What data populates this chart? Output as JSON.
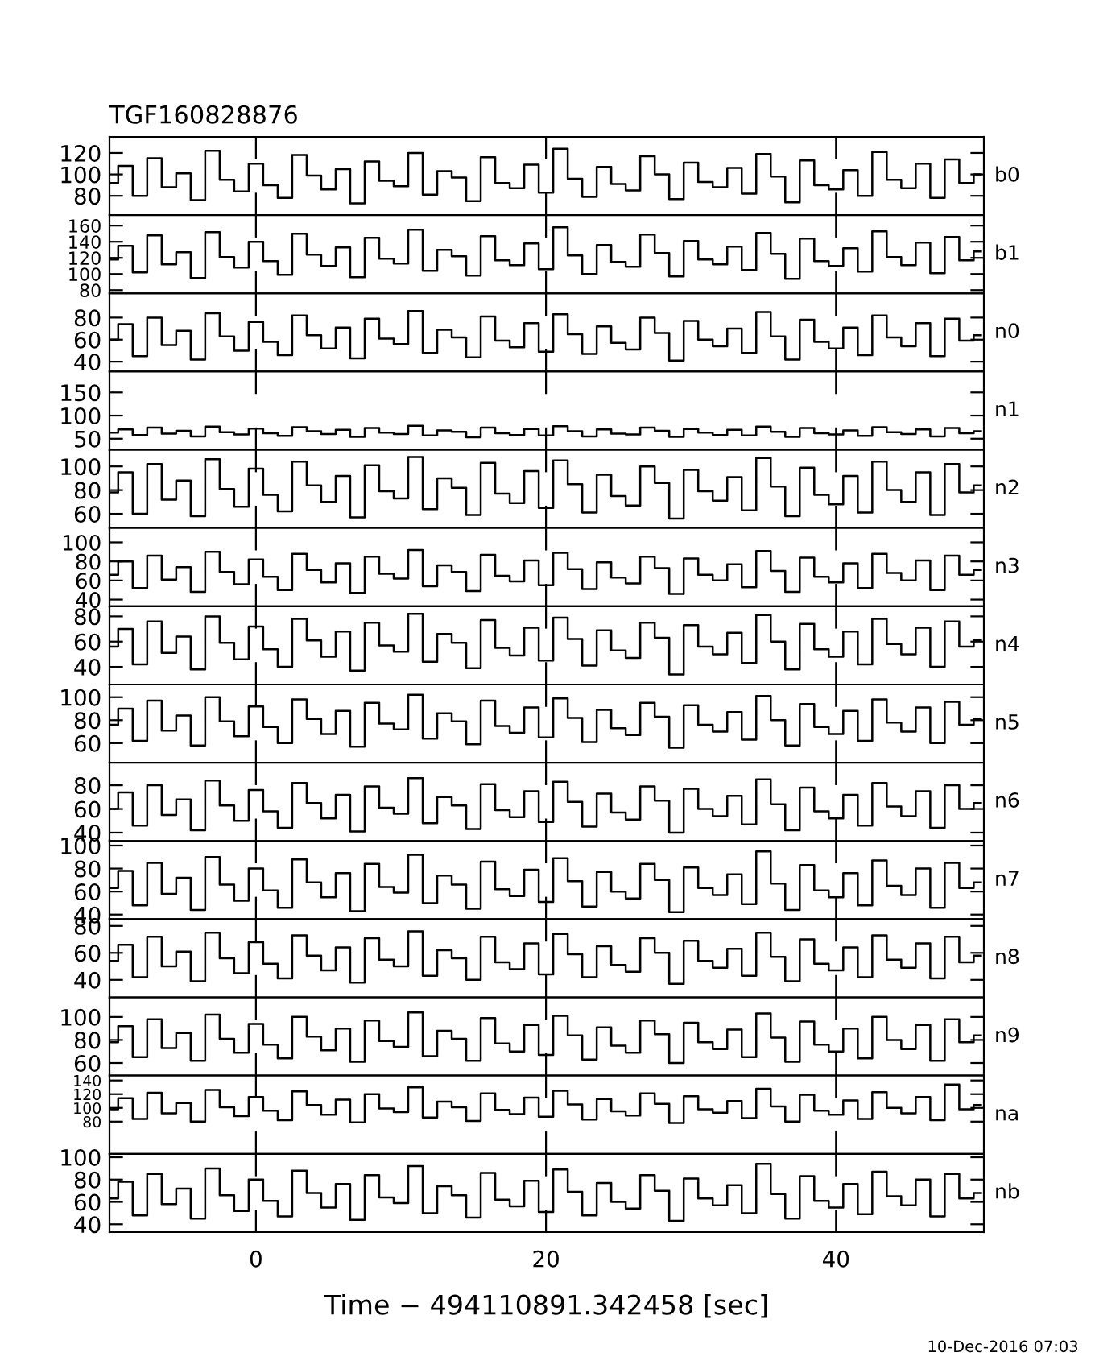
{
  "chart_data": [
    {
      "type": "step",
      "title": "TGF160828876",
      "annotations": [
        "b0"
      ],
      "x": [
        -10,
        -9,
        -8,
        -7,
        -6,
        -5,
        -4,
        -3,
        -2,
        -1,
        0,
        1,
        2,
        3,
        4,
        5,
        6,
        7,
        8,
        9,
        10,
        11,
        12,
        13,
        14,
        15,
        16,
        17,
        18,
        19,
        20,
        21,
        22,
        23,
        24,
        25,
        26,
        27,
        28,
        29,
        30,
        31,
        32,
        33,
        34,
        35,
        36,
        37,
        38,
        39,
        40,
        41,
        42,
        43,
        44,
        45,
        46,
        47,
        48,
        49,
        50
      ],
      "xlim": [
        -10.1,
        50.2
      ],
      "xticks": [
        0,
        20,
        40
      ],
      "ylim": [
        62,
        135
      ],
      "yticks": [
        80,
        100,
        120
      ],
      "tick_labels": "y",
      "series": [
        {
          "color": "#000000",
          "values": [
            92,
            108,
            80,
            115,
            88,
            101,
            76,
            122,
            95,
            84,
            110,
            90,
            78,
            118,
            99,
            86,
            105,
            73,
            112,
            94,
            89,
            120,
            81,
            103,
            97,
            75,
            116,
            92,
            87,
            109,
            83,
            124,
            96,
            79,
            107,
            91,
            85,
            117,
            100,
            77,
            111,
            93,
            88,
            106,
            82,
            119,
            98,
            74,
            113,
            90,
            86,
            104,
            80,
            121,
            95,
            87,
            110,
            78,
            114,
            92,
            100
          ]
        }
      ]
    },
    {
      "type": "step",
      "annotations": [
        "b1"
      ],
      "x": [
        -10,
        -9,
        -8,
        -7,
        -6,
        -5,
        -4,
        -3,
        -2,
        -1,
        0,
        1,
        2,
        3,
        4,
        5,
        6,
        7,
        8,
        9,
        10,
        11,
        12,
        13,
        14,
        15,
        16,
        17,
        18,
        19,
        20,
        21,
        22,
        23,
        24,
        25,
        26,
        27,
        28,
        29,
        30,
        31,
        32,
        33,
        34,
        35,
        36,
        37,
        38,
        39,
        40,
        41,
        42,
        43,
        44,
        45,
        46,
        47,
        48,
        49,
        50
      ],
      "xlim": [
        -10.1,
        50.2
      ],
      "xticks": [
        0,
        20,
        40
      ],
      "ylim": [
        76,
        173
      ],
      "yticks": [
        80,
        100,
        120,
        140,
        160
      ],
      "tick_labels": "y",
      "series": [
        {
          "color": "#000000",
          "values": [
            118,
            135,
            102,
            148,
            112,
            127,
            95,
            152,
            121,
            108,
            140,
            116,
            99,
            150,
            124,
            110,
            133,
            96,
            145,
            119,
            113,
            155,
            104,
            130,
            122,
            98,
            147,
            117,
            111,
            138,
            106,
            158,
            123,
            100,
            136,
            115,
            109,
            149,
            126,
            97,
            141,
            118,
            112,
            134,
            105,
            151,
            125,
            94,
            144,
            116,
            110,
            132,
            103,
            153,
            121,
            111,
            139,
            101,
            146,
            117,
            128
          ]
        }
      ]
    },
    {
      "type": "step",
      "annotations": [
        "n0"
      ],
      "x": [
        -10,
        -9,
        -8,
        -7,
        -6,
        -5,
        -4,
        -3,
        -2,
        -1,
        0,
        1,
        2,
        3,
        4,
        5,
        6,
        7,
        8,
        9,
        10,
        11,
        12,
        13,
        14,
        15,
        16,
        17,
        18,
        19,
        20,
        21,
        22,
        23,
        24,
        25,
        26,
        27,
        28,
        29,
        30,
        31,
        32,
        33,
        34,
        35,
        36,
        37,
        38,
        39,
        40,
        41,
        42,
        43,
        44,
        45,
        46,
        47,
        48,
        49,
        50
      ],
      "xlim": [
        -10.1,
        50.2
      ],
      "xticks": [
        0,
        20,
        40
      ],
      "ylim": [
        31,
        102
      ],
      "yticks": [
        40,
        60,
        80
      ],
      "tick_labels": "y",
      "series": [
        {
          "color": "#000000",
          "values": [
            60,
            74,
            45,
            80,
            55,
            68,
            42,
            84,
            63,
            50,
            76,
            58,
            46,
            82,
            64,
            52,
            71,
            43,
            79,
            61,
            56,
            86,
            48,
            69,
            62,
            44,
            81,
            59,
            53,
            75,
            49,
            83,
            65,
            47,
            72,
            57,
            51,
            80,
            66,
            41,
            77,
            60,
            54,
            70,
            48,
            85,
            63,
            42,
            78,
            58,
            52,
            71,
            46,
            82,
            62,
            54,
            75,
            45,
            79,
            59,
            64
          ]
        }
      ]
    },
    {
      "type": "step",
      "annotations": [
        "n1"
      ],
      "x": [
        -10,
        -9,
        -8,
        -7,
        -6,
        -5,
        -4,
        -3,
        -2,
        -1,
        0,
        1,
        2,
        3,
        4,
        5,
        6,
        7,
        8,
        9,
        10,
        11,
        12,
        13,
        14,
        15,
        16,
        17,
        18,
        19,
        20,
        21,
        22,
        23,
        24,
        25,
        26,
        27,
        28,
        29,
        30,
        31,
        32,
        33,
        34,
        35,
        36,
        37,
        38,
        39,
        40,
        41,
        42,
        43,
        44,
        45,
        46,
        47,
        48,
        49,
        50
      ],
      "xlim": [
        -10.1,
        50.2
      ],
      "xticks": [
        0,
        20,
        40
      ],
      "ylim": [
        26,
        195
      ],
      "yticks": [
        50,
        100,
        150
      ],
      "tick_labels": "y",
      "series": [
        {
          "color": "#000000",
          "values": [
            63,
            70,
            58,
            74,
            61,
            67,
            55,
            76,
            64,
            59,
            72,
            62,
            56,
            75,
            66,
            60,
            69,
            54,
            73,
            63,
            60,
            78,
            57,
            68,
            65,
            53,
            74,
            62,
            58,
            71,
            57,
            77,
            66,
            55,
            70,
            61,
            59,
            74,
            67,
            54,
            71,
            63,
            58,
            69,
            57,
            76,
            65,
            54,
            73,
            62,
            59,
            68,
            56,
            75,
            64,
            60,
            70,
            55,
            73,
            62,
            66
          ]
        }
      ]
    },
    {
      "type": "step",
      "annotations": [
        "n2"
      ],
      "x": [
        -10,
        -9,
        -8,
        -7,
        -6,
        -5,
        -4,
        -3,
        -2,
        -1,
        0,
        1,
        2,
        3,
        4,
        5,
        6,
        7,
        8,
        9,
        10,
        11,
        12,
        13,
        14,
        15,
        16,
        17,
        18,
        19,
        20,
        21,
        22,
        23,
        24,
        25,
        26,
        27,
        28,
        29,
        30,
        31,
        32,
        33,
        34,
        35,
        36,
        37,
        38,
        39,
        40,
        41,
        42,
        43,
        44,
        45,
        46,
        47,
        48,
        49,
        50
      ],
      "xlim": [
        -10.1,
        50.2
      ],
      "xticks": [
        0,
        20,
        40
      ],
      "ylim": [
        48,
        114
      ],
      "yticks": [
        60,
        80,
        100
      ],
      "tick_labels": "y",
      "series": [
        {
          "color": "#000000",
          "values": [
            78,
            95,
            60,
            102,
            72,
            88,
            58,
            106,
            81,
            66,
            98,
            76,
            62,
            104,
            84,
            70,
            92,
            57,
            101,
            79,
            73,
            108,
            64,
            90,
            82,
            59,
            103,
            77,
            69,
            96,
            65,
            105,
            85,
            61,
            93,
            75,
            67,
            100,
            86,
            56,
            97,
            79,
            71,
            91,
            63,
            107,
            83,
            58,
            99,
            76,
            68,
            92,
            61,
            104,
            80,
            70,
            95,
            59,
            102,
            78,
            84
          ]
        }
      ]
    },
    {
      "type": "step",
      "annotations": [
        "n3"
      ],
      "x": [
        -10,
        -9,
        -8,
        -7,
        -6,
        -5,
        -4,
        -3,
        -2,
        -1,
        0,
        1,
        2,
        3,
        4,
        5,
        6,
        7,
        8,
        9,
        10,
        11,
        12,
        13,
        14,
        15,
        16,
        17,
        18,
        19,
        20,
        21,
        22,
        23,
        24,
        25,
        26,
        27,
        28,
        29,
        30,
        31,
        32,
        33,
        34,
        35,
        36,
        37,
        38,
        39,
        40,
        41,
        42,
        43,
        44,
        45,
        46,
        47,
        48,
        49,
        50
      ],
      "xlim": [
        -10.1,
        50.2
      ],
      "xticks": [
        0,
        20,
        40
      ],
      "ylim": [
        33,
        115
      ],
      "yticks": [
        40,
        60,
        80,
        100
      ],
      "tick_labels": "y",
      "series": [
        {
          "color": "#000000",
          "values": [
            66,
            80,
            52,
            86,
            61,
            74,
            48,
            90,
            69,
            56,
            82,
            64,
            50,
            88,
            71,
            58,
            78,
            47,
            85,
            67,
            62,
            92,
            54,
            76,
            69,
            49,
            87,
            65,
            59,
            81,
            55,
            89,
            72,
            51,
            79,
            63,
            57,
            85,
            73,
            46,
            83,
            66,
            60,
            77,
            53,
            91,
            70,
            48,
            84,
            64,
            58,
            78,
            52,
            88,
            68,
            60,
            81,
            50,
            86,
            66,
            71
          ]
        }
      ]
    },
    {
      "type": "step",
      "annotations": [
        "n4"
      ],
      "x": [
        -10,
        -9,
        -8,
        -7,
        -6,
        -5,
        -4,
        -3,
        -2,
        -1,
        0,
        1,
        2,
        3,
        4,
        5,
        6,
        7,
        8,
        9,
        10,
        11,
        12,
        13,
        14,
        15,
        16,
        17,
        18,
        19,
        20,
        21,
        22,
        23,
        24,
        25,
        26,
        27,
        28,
        29,
        30,
        31,
        32,
        33,
        34,
        35,
        36,
        37,
        38,
        39,
        40,
        41,
        42,
        43,
        44,
        45,
        46,
        47,
        48,
        49,
        50
      ],
      "xlim": [
        -10.1,
        50.2
      ],
      "xticks": [
        0,
        20,
        40
      ],
      "ylim": [
        26,
        88
      ],
      "yticks": [
        40,
        60,
        80
      ],
      "tick_labels": "y",
      "series": [
        {
          "color": "#000000",
          "values": [
            56,
            70,
            42,
            76,
            51,
            64,
            38,
            80,
            59,
            46,
            72,
            54,
            40,
            78,
            61,
            48,
            68,
            37,
            75,
            57,
            52,
            82,
            44,
            66,
            59,
            39,
            77,
            55,
            49,
            71,
            45,
            79,
            62,
            41,
            69,
            53,
            47,
            75,
            63,
            34,
            73,
            56,
            50,
            67,
            43,
            81,
            60,
            38,
            74,
            54,
            48,
            68,
            42,
            78,
            58,
            50,
            71,
            40,
            76,
            56,
            61
          ]
        }
      ]
    },
    {
      "type": "step",
      "annotations": [
        "n5"
      ],
      "x": [
        -10,
        -9,
        -8,
        -7,
        -6,
        -5,
        -4,
        -3,
        -2,
        -1,
        0,
        1,
        2,
        3,
        4,
        5,
        6,
        7,
        8,
        9,
        10,
        11,
        12,
        13,
        14,
        15,
        16,
        17,
        18,
        19,
        20,
        21,
        22,
        23,
        24,
        25,
        26,
        27,
        28,
        29,
        30,
        31,
        32,
        33,
        34,
        35,
        36,
        37,
        38,
        39,
        40,
        41,
        42,
        43,
        44,
        45,
        46,
        47,
        48,
        49,
        50
      ],
      "xlim": [
        -10.1,
        50.2
      ],
      "xticks": [
        0,
        20,
        40
      ],
      "ylim": [
        43,
        111
      ],
      "yticks": [
        60,
        80,
        100
      ],
      "tick_labels": "y",
      "series": [
        {
          "color": "#000000",
          "values": [
            76,
            90,
            62,
            97,
            71,
            84,
            58,
            100,
            79,
            66,
            92,
            74,
            60,
            98,
            81,
            68,
            88,
            57,
            95,
            77,
            72,
            102,
            64,
            86,
            79,
            59,
            97,
            75,
            69,
            91,
            65,
            99,
            82,
            61,
            89,
            73,
            67,
            95,
            83,
            56,
            93,
            76,
            70,
            87,
            63,
            101,
            80,
            58,
            94,
            74,
            68,
            88,
            62,
            98,
            78,
            70,
            91,
            60,
            96,
            76,
            81
          ]
        }
      ]
    },
    {
      "type": "step",
      "annotations": [
        "n6"
      ],
      "x": [
        -10,
        -9,
        -8,
        -7,
        -6,
        -5,
        -4,
        -3,
        -2,
        -1,
        0,
        1,
        2,
        3,
        4,
        5,
        6,
        7,
        8,
        9,
        10,
        11,
        12,
        13,
        14,
        15,
        16,
        17,
        18,
        19,
        20,
        21,
        22,
        23,
        24,
        25,
        26,
        27,
        28,
        29,
        30,
        31,
        32,
        33,
        34,
        35,
        36,
        37,
        38,
        39,
        40,
        41,
        42,
        43,
        44,
        45,
        46,
        47,
        48,
        49,
        50
      ],
      "xlim": [
        -10.1,
        50.2
      ],
      "xticks": [
        0,
        20,
        40
      ],
      "ylim": [
        33,
        99
      ],
      "yticks": [
        40,
        60,
        80
      ],
      "tick_labels": "y",
      "series": [
        {
          "color": "#000000",
          "values": [
            60,
            74,
            46,
            80,
            55,
            68,
            42,
            84,
            63,
            50,
            76,
            58,
            44,
            82,
            65,
            52,
            72,
            41,
            79,
            61,
            56,
            86,
            48,
            70,
            63,
            43,
            81,
            59,
            53,
            75,
            49,
            83,
            66,
            45,
            73,
            57,
            51,
            79,
            67,
            40,
            77,
            60,
            54,
            71,
            47,
            85,
            64,
            42,
            78,
            58,
            52,
            72,
            46,
            82,
            62,
            54,
            75,
            44,
            80,
            60,
            65
          ]
        }
      ]
    },
    {
      "type": "step",
      "annotations": [
        "n7"
      ],
      "x": [
        -10,
        -9,
        -8,
        -7,
        -6,
        -5,
        -4,
        -3,
        -2,
        -1,
        0,
        1,
        2,
        3,
        4,
        5,
        6,
        7,
        8,
        9,
        10,
        11,
        12,
        13,
        14,
        15,
        16,
        17,
        18,
        19,
        20,
        21,
        22,
        23,
        24,
        25,
        26,
        27,
        28,
        29,
        30,
        31,
        32,
        33,
        34,
        35,
        36,
        37,
        38,
        39,
        40,
        41,
        42,
        43,
        44,
        45,
        46,
        47,
        48,
        49,
        50
      ],
      "xlim": [
        -10.1,
        50.2
      ],
      "xticks": [
        0,
        20,
        40
      ],
      "ylim": [
        36,
        104
      ],
      "yticks": [
        40,
        60,
        80,
        100
      ],
      "tick_labels": "y",
      "series": [
        {
          "color": "#000000",
          "values": [
            63,
            78,
            48,
            85,
            58,
            72,
            44,
            90,
            66,
            52,
            80,
            61,
            46,
            88,
            68,
            55,
            76,
            43,
            84,
            64,
            59,
            92,
            50,
            74,
            66,
            45,
            86,
            62,
            56,
            79,
            51,
            89,
            69,
            47,
            77,
            60,
            54,
            84,
            70,
            42,
            81,
            63,
            57,
            75,
            49,
            95,
            67,
            44,
            83,
            61,
            55,
            76,
            48,
            87,
            65,
            57,
            80,
            46,
            85,
            63,
            68
          ]
        }
      ]
    },
    {
      "type": "step",
      "annotations": [
        "n8"
      ],
      "x": [
        -10,
        -9,
        -8,
        -7,
        -6,
        -5,
        -4,
        -3,
        -2,
        -1,
        0,
        1,
        2,
        3,
        4,
        5,
        6,
        7,
        8,
        9,
        10,
        11,
        12,
        13,
        14,
        15,
        16,
        17,
        18,
        19,
        20,
        21,
        22,
        23,
        24,
        25,
        26,
        27,
        28,
        29,
        30,
        31,
        32,
        33,
        34,
        35,
        36,
        37,
        38,
        39,
        40,
        41,
        42,
        43,
        44,
        45,
        46,
        47,
        48,
        49,
        50
      ],
      "xlim": [
        -10.1,
        50.2
      ],
      "xticks": [
        0,
        20,
        40
      ],
      "ylim": [
        27,
        85
      ],
      "yticks": [
        40,
        60,
        80
      ],
      "tick_labels": "y",
      "series": [
        {
          "color": "#000000",
          "values": [
            54,
            66,
            42,
            72,
            50,
            61,
            39,
            75,
            56,
            45,
            68,
            52,
            41,
            73,
            58,
            47,
            64,
            38,
            71,
            55,
            50,
            76,
            43,
            62,
            56,
            40,
            72,
            53,
            48,
            67,
            44,
            74,
            59,
            42,
            65,
            51,
            46,
            71,
            60,
            37,
            69,
            54,
            49,
            63,
            43,
            75,
            57,
            39,
            70,
            52,
            47,
            64,
            42,
            73,
            55,
            49,
            67,
            41,
            72,
            53,
            58
          ]
        }
      ]
    },
    {
      "type": "step",
      "annotations": [
        "n9"
      ],
      "x": [
        -10,
        -9,
        -8,
        -7,
        -6,
        -5,
        -4,
        -3,
        -2,
        -1,
        0,
        1,
        2,
        3,
        4,
        5,
        6,
        7,
        8,
        9,
        10,
        11,
        12,
        13,
        14,
        15,
        16,
        17,
        18,
        19,
        20,
        21,
        22,
        23,
        24,
        25,
        26,
        27,
        28,
        29,
        30,
        31,
        32,
        33,
        34,
        35,
        36,
        37,
        38,
        39,
        40,
        41,
        42,
        43,
        44,
        45,
        46,
        47,
        48,
        49,
        50
      ],
      "xlim": [
        -10.1,
        50.2
      ],
      "xticks": [
        0,
        20,
        40
      ],
      "ylim": [
        49,
        117
      ],
      "yticks": [
        60,
        80,
        100
      ],
      "tick_labels": "y",
      "series": [
        {
          "color": "#000000",
          "values": [
            78,
            92,
            65,
            98,
            73,
            86,
            62,
            102,
            81,
            69,
            94,
            76,
            64,
            100,
            83,
            71,
            90,
            61,
            97,
            79,
            74,
            104,
            66,
            88,
            81,
            62,
            99,
            77,
            70,
            93,
            67,
            101,
            84,
            63,
            91,
            75,
            69,
            97,
            85,
            60,
            95,
            78,
            72,
            89,
            65,
            103,
            82,
            61,
            96,
            76,
            70,
            90,
            64,
            100,
            80,
            72,
            93,
            62,
            98,
            78,
            84
          ]
        }
      ]
    },
    {
      "type": "step",
      "annotations": [
        "na"
      ],
      "x": [
        -10,
        -9,
        -8,
        -7,
        -6,
        -5,
        -4,
        -3,
        -2,
        -1,
        0,
        1,
        2,
        3,
        4,
        5,
        6,
        7,
        8,
        9,
        10,
        11,
        12,
        13,
        14,
        15,
        16,
        17,
        18,
        19,
        20,
        21,
        22,
        23,
        24,
        25,
        26,
        27,
        28,
        29,
        30,
        31,
        32,
        33,
        34,
        35,
        36,
        37,
        38,
        39,
        40,
        41,
        42,
        43,
        44,
        45,
        46,
        47,
        48,
        49,
        50
      ],
      "xlim": [
        -10.1,
        50.2
      ],
      "xticks": [
        0,
        20,
        40
      ],
      "ylim": [
        33,
        147
      ],
      "yticks": [
        80,
        100,
        120,
        140
      ],
      "tick_labels": "y",
      "series": [
        {
          "color": "#000000",
          "values": [
            98,
            114,
            84,
            122,
            92,
            107,
            80,
            126,
            101,
            88,
            116,
            96,
            82,
            124,
            104,
            90,
            112,
            79,
            120,
            99,
            94,
            130,
            86,
            109,
            101,
            81,
            121,
            97,
            91,
            115,
            87,
            125,
            105,
            83,
            113,
            95,
            89,
            121,
            106,
            78,
            117,
            98,
            93,
            110,
            85,
            128,
            102,
            80,
            119,
            96,
            90,
            111,
            84,
            123,
            100,
            92,
            116,
            82,
            134,
            98,
            104
          ]
        }
      ]
    },
    {
      "type": "step",
      "xlabel": "Time − 494110891.342458 [sec]",
      "annotations": [
        "nb",
        "10-Dec-2016 07:03"
      ],
      "x": [
        -10,
        -9,
        -8,
        -7,
        -6,
        -5,
        -4,
        -3,
        -2,
        -1,
        0,
        1,
        2,
        3,
        4,
        5,
        6,
        7,
        8,
        9,
        10,
        11,
        12,
        13,
        14,
        15,
        16,
        17,
        18,
        19,
        20,
        21,
        22,
        23,
        24,
        25,
        26,
        27,
        28,
        29,
        30,
        31,
        32,
        33,
        34,
        35,
        36,
        37,
        38,
        39,
        40,
        41,
        42,
        43,
        44,
        45,
        46,
        47,
        48,
        49,
        50
      ],
      "xlim": [
        -10.1,
        50.2
      ],
      "xticks": [
        0,
        20,
        40
      ],
      "ylim": [
        33,
        103
      ],
      "yticks": [
        40,
        60,
        80,
        100
      ],
      "series": [
        {
          "color": "#000000",
          "values": [
            63,
            78,
            48,
            85,
            58,
            72,
            45,
            90,
            66,
            52,
            80,
            61,
            47,
            88,
            68,
            55,
            76,
            44,
            84,
            64,
            59,
            92,
            50,
            74,
            66,
            46,
            86,
            62,
            56,
            79,
            51,
            89,
            69,
            48,
            77,
            60,
            54,
            84,
            70,
            43,
            81,
            63,
            57,
            75,
            50,
            94,
            67,
            45,
            83,
            61,
            55,
            76,
            49,
            87,
            65,
            57,
            80,
            47,
            85,
            63,
            68
          ]
        }
      ]
    }
  ]
}
